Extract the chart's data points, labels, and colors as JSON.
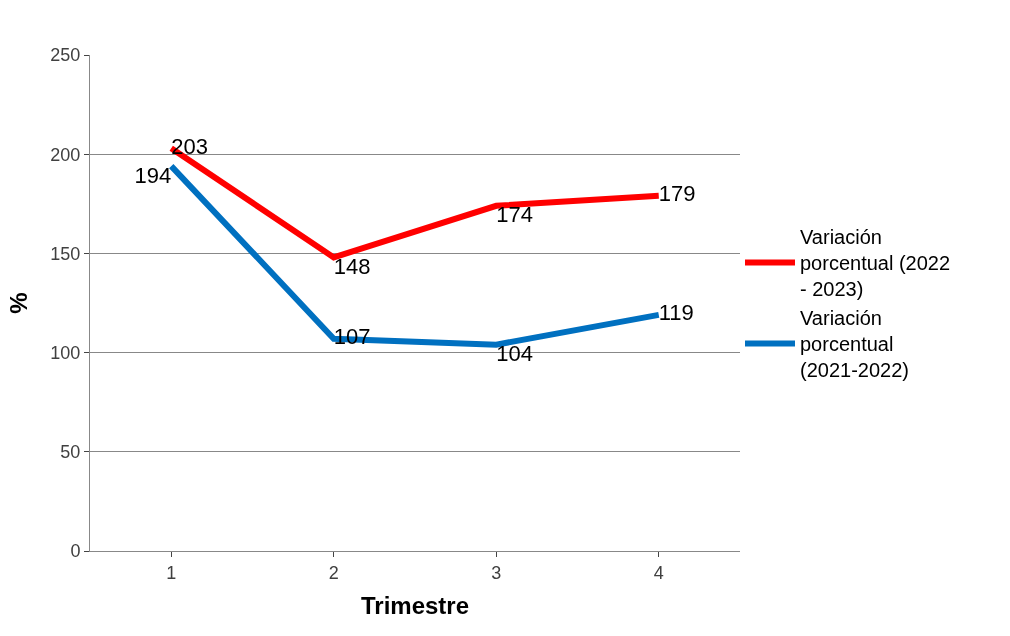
{
  "chart_data": {
    "type": "line",
    "xlabel": "Trimestre",
    "ylabel": "%",
    "categories": [
      "1",
      "2",
      "3",
      "4"
    ],
    "series": [
      {
        "name": "Variación porcentual (2022 - 2023)",
        "color": "#ff0000",
        "values": [
          203,
          148,
          174,
          179
        ]
      },
      {
        "name": "Variación porcentual (2021-2022)",
        "color": "#0070c0",
        "values": [
          194,
          107,
          104,
          119
        ]
      }
    ],
    "ylim": [
      0,
      250
    ],
    "yticks": [
      0,
      50,
      100,
      150,
      200,
      250
    ],
    "grid": "y",
    "legend": "right",
    "data_labels": true,
    "marker": "none",
    "line_style": "solid"
  }
}
